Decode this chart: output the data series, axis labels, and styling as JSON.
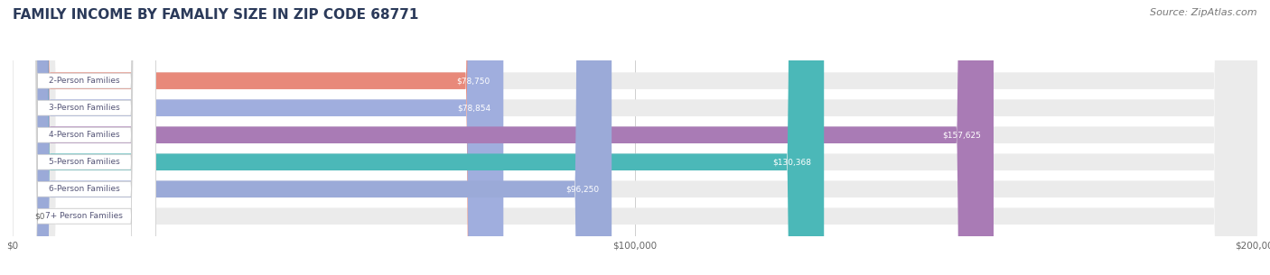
{
  "title": "FAMILY INCOME BY FAMALIY SIZE IN ZIP CODE 68771",
  "source": "Source: ZipAtlas.com",
  "categories": [
    "2-Person Families",
    "3-Person Families",
    "4-Person Families",
    "5-Person Families",
    "6-Person Families",
    "7+ Person Families"
  ],
  "values": [
    78750,
    78854,
    157625,
    130368,
    96250,
    0
  ],
  "bar_colors": [
    "#E8897A",
    "#A0AEDE",
    "#A97BB5",
    "#4BB8B8",
    "#9BAAD8",
    "#F4A0B0"
  ],
  "bar_bg_color": "#EBEBEB",
  "label_text_color": "#555577",
  "value_label_inside_color": "#FFFFFF",
  "value_label_outside_color": "#666666",
  "xlim": [
    0,
    200000
  ],
  "xticklabels": [
    "$0",
    "$100,000",
    "$200,000"
  ],
  "title_color": "#2B3A5A",
  "title_fontsize": 11,
  "source_fontsize": 8,
  "bar_height": 0.62,
  "figsize": [
    14.06,
    3.05
  ],
  "dpi": 100
}
